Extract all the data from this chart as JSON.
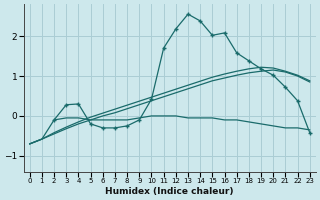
{
  "xlabel": "Humidex (Indice chaleur)",
  "bg_color": "#cde8ec",
  "grid_color": "#aacdd4",
  "line_color": "#1a6b6b",
  "xlim": [
    -0.5,
    23.5
  ],
  "ylim": [
    -1.4,
    2.8
  ],
  "yticks": [
    -1,
    0,
    1,
    2
  ],
  "xticks": [
    0,
    1,
    2,
    3,
    4,
    5,
    6,
    7,
    8,
    9,
    10,
    11,
    12,
    13,
    14,
    15,
    16,
    17,
    18,
    19,
    20,
    21,
    22,
    23
  ],
  "series": [
    {
      "x": [
        0,
        1,
        2,
        3,
        4,
        5,
        6,
        7,
        8,
        9,
        10,
        11,
        12,
        13,
        14,
        15,
        16,
        17,
        18,
        19,
        20,
        21,
        22,
        23
      ],
      "y": [
        -0.7,
        -0.58,
        -0.1,
        -0.05,
        -0.05,
        -0.1,
        -0.1,
        -0.1,
        -0.1,
        -0.05,
        0.0,
        0.0,
        0.0,
        -0.05,
        -0.05,
        -0.05,
        -0.1,
        -0.1,
        -0.15,
        -0.2,
        -0.25,
        -0.3,
        -0.3,
        -0.35
      ],
      "has_markers": false
    },
    {
      "x": [
        0,
        1,
        2,
        3,
        4,
        5,
        6,
        7,
        8,
        9,
        10,
        11,
        12,
        13,
        14,
        15,
        16,
        17,
        18,
        19,
        20,
        21,
        22,
        23
      ],
      "y": [
        -0.7,
        -0.58,
        -0.45,
        -0.32,
        -0.2,
        -0.1,
        0.0,
        0.08,
        0.18,
        0.28,
        0.38,
        0.48,
        0.58,
        0.68,
        0.78,
        0.88,
        0.95,
        1.02,
        1.08,
        1.12,
        1.15,
        1.1,
        1.0,
        0.85
      ],
      "has_markers": false
    },
    {
      "x": [
        0,
        1,
        2,
        3,
        4,
        5,
        6,
        7,
        8,
        9,
        10,
        11,
        12,
        13,
        14,
        15,
        16,
        17,
        18,
        19,
        20,
        21,
        22,
        23
      ],
      "y": [
        -0.7,
        -0.58,
        -0.42,
        -0.28,
        -0.15,
        -0.03,
        0.07,
        0.17,
        0.27,
        0.37,
        0.47,
        0.57,
        0.67,
        0.77,
        0.87,
        0.97,
        1.05,
        1.12,
        1.18,
        1.22,
        1.2,
        1.12,
        1.02,
        0.88
      ],
      "has_markers": false
    },
    {
      "x": [
        2,
        3,
        4,
        5,
        6,
        7,
        8,
        9,
        10,
        11,
        12,
        13,
        14,
        15,
        16,
        17,
        18,
        19,
        20,
        21,
        22,
        23
      ],
      "y": [
        -0.1,
        0.28,
        0.3,
        -0.2,
        -0.3,
        -0.3,
        -0.25,
        -0.1,
        0.42,
        1.7,
        2.18,
        2.55,
        2.38,
        2.02,
        2.08,
        1.58,
        1.38,
        1.18,
        1.02,
        0.72,
        0.38,
        -0.42
      ],
      "has_markers": true
    }
  ]
}
